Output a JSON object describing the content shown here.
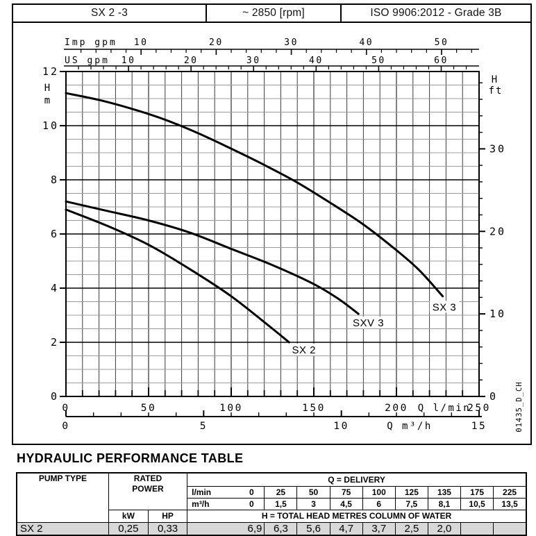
{
  "header": {
    "model": "SX 2 -3",
    "speed": "~ 2850 [rpm]",
    "standard": "ISO 9906:2012 - Grade 3B"
  },
  "chart_data": {
    "type": "line",
    "title": "",
    "x_range_lmin": [
      0,
      250
    ],
    "y_range_m": [
      0,
      12
    ],
    "grid": {
      "x_step_lmin": 10,
      "y_step_m": 0.5,
      "y_major_step_m": 2
    },
    "axes": {
      "imp_gpm": {
        "title": "Imp gpm",
        "major_ticks": [
          10,
          20,
          30,
          40,
          50
        ],
        "minor_step": 2,
        "minor_max": 54,
        "lmin_per_unit": 4.546
      },
      "us_gpm": {
        "title": "US gpm",
        "major_ticks": [
          10,
          20,
          30,
          40,
          50,
          60
        ],
        "minor_step": 2,
        "minor_max": 64,
        "lmin_per_unit": 3.785
      },
      "h_m": {
        "title_letter": "H",
        "title_unit": "m",
        "major_ticks": [
          0,
          2,
          4,
          6,
          8,
          10,
          12
        ]
      },
      "h_ft": {
        "title_letter": "H",
        "title_unit": "ft",
        "major_ticks": [
          0,
          10,
          20,
          30
        ],
        "minor_step": 2,
        "minor_max": 38,
        "m_per_unit": 0.3048
      },
      "q_lmin": {
        "title": "Q l/min",
        "major_ticks": [
          0,
          50,
          100,
          150,
          200,
          250
        ],
        "minor_step": 10
      },
      "q_m3h": {
        "title": "Q m³/h",
        "major_ticks": [
          0,
          5,
          10,
          15
        ],
        "minor_step": 1,
        "lmin_per_unit": 16.6667
      }
    },
    "series": [
      {
        "name": "SX 3",
        "points_lmin_m": [
          [
            0,
            11.2
          ],
          [
            20,
            10.95
          ],
          [
            40,
            10.62
          ],
          [
            60,
            10.22
          ],
          [
            80,
            9.72
          ],
          [
            100,
            9.15
          ],
          [
            120,
            8.55
          ],
          [
            140,
            7.9
          ],
          [
            160,
            7.15
          ],
          [
            180,
            6.35
          ],
          [
            200,
            5.4
          ],
          [
            214,
            4.65
          ],
          [
            228,
            3.7
          ]
        ],
        "label_at": [
          229,
          3.3
        ]
      },
      {
        "name": "SXV 3",
        "points_lmin_m": [
          [
            0,
            7.2
          ],
          [
            25,
            6.85
          ],
          [
            50,
            6.5
          ],
          [
            75,
            6.05
          ],
          [
            100,
            5.45
          ],
          [
            125,
            4.85
          ],
          [
            150,
            4.15
          ],
          [
            165,
            3.6
          ],
          [
            177,
            3.05
          ]
        ],
        "label_at": [
          183,
          2.72
        ]
      },
      {
        "name": "SX 2",
        "points_lmin_m": [
          [
            0,
            6.9
          ],
          [
            25,
            6.3
          ],
          [
            50,
            5.6
          ],
          [
            75,
            4.7
          ],
          [
            100,
            3.7
          ],
          [
            125,
            2.5
          ],
          [
            135,
            2.0
          ]
        ],
        "label_at": [
          144,
          1.72
        ]
      }
    ],
    "watermark": "01435_D_CH",
    "colors": {
      "curve": "#000000",
      "grid_minor_h": "#9c9c9c",
      "grid_major": "#000000",
      "grid_v": "#3a3a3a"
    }
  },
  "perf_table": {
    "title": "HYDRAULIC PERFORMANCE TABLE",
    "pump_type_header": "PUMP TYPE",
    "rated": "RATED",
    "power": "POWER",
    "kw": "kW",
    "hp": "HP",
    "q_delivery": "Q = DELIVERY",
    "lmin_label": "l/min",
    "m3h_label": "m³/h",
    "head_label": "H = TOTAL HEAD METRES COLUMN OF WATER",
    "delivery_lmin": [
      "0",
      "25",
      "50",
      "75",
      "100",
      "125",
      "135",
      "175",
      "225"
    ],
    "delivery_m3h": [
      "0",
      "1,5",
      "3",
      "4,5",
      "6",
      "7,5",
      "8,1",
      "10,5",
      "13,5"
    ],
    "rows": [
      {
        "pump": "SX 2",
        "kw": "0,25",
        "hp": "0,33",
        "heads": [
          "6,9",
          "6,3",
          "5,6",
          "4,7",
          "3,7",
          "2,5",
          "2,0",
          "",
          ""
        ]
      }
    ]
  }
}
